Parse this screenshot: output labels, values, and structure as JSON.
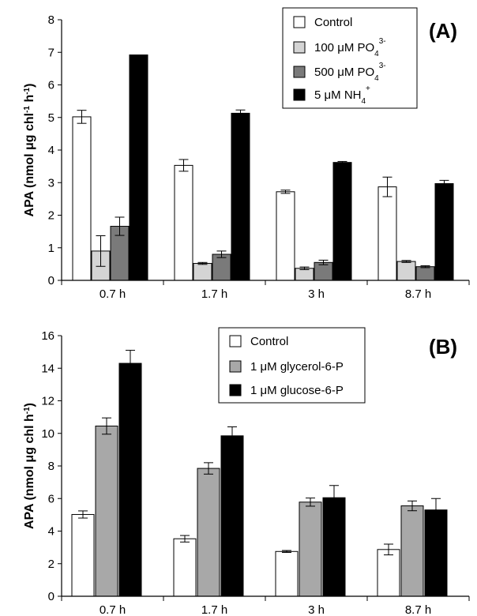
{
  "chart_data": [
    {
      "type": "bar",
      "panel_label": "(A)",
      "ylabel_main": "APA (nmol μg chl",
      "ylabel_sup1": "-1",
      "ylabel_mid": " h",
      "ylabel_sup2": "-1",
      "ylabel_end": ")",
      "ylim": [
        0,
        8
      ],
      "yticks": [
        "0",
        "1",
        "2",
        "3",
        "4",
        "5",
        "6",
        "7",
        "8"
      ],
      "categories": [
        "0.7 h",
        "1.7 h",
        "3 h",
        "8.7 h"
      ],
      "legend_position": "top-right",
      "series": [
        {
          "name": "Control",
          "name_sup": "",
          "color": "#ffffff",
          "values": [
            5.02,
            3.53,
            2.72,
            2.87
          ],
          "errors": [
            0.2,
            0.18,
            0.05,
            0.3
          ]
        },
        {
          "name": "100 μM PO",
          "name_sub": "4",
          "name_sup": "3-",
          "color": "#d4d4d4",
          "values": [
            0.9,
            0.52,
            0.37,
            0.58
          ],
          "errors": [
            0.47,
            0.03,
            0.04,
            0.03
          ]
        },
        {
          "name": "500 μM PO",
          "name_sub": "4",
          "name_sup": "3-",
          "color": "#7a7a7a",
          "values": [
            1.66,
            0.8,
            0.55,
            0.42
          ],
          "errors": [
            0.28,
            0.1,
            0.07,
            0.03
          ]
        },
        {
          "name": "5 μM NH",
          "name_sub": "4",
          "name_sup": "+",
          "color": "#000000",
          "values": [
            6.92,
            5.13,
            3.62,
            2.97
          ],
          "errors": [
            0,
            0.1,
            0.03,
            0.1
          ]
        }
      ]
    },
    {
      "type": "bar",
      "panel_label": "(B)",
      "ylabel_main": "APA (nmol μg chl",
      "ylabel_sup1": "",
      "ylabel_mid": " h",
      "ylabel_sup2": "-1",
      "ylabel_end": ")",
      "ylim": [
        0,
        16
      ],
      "yticks": [
        "0",
        "2",
        "4",
        "6",
        "8",
        "10",
        "12",
        "14",
        "16"
      ],
      "categories": [
        "0.7 h",
        "1.7 h",
        "3 h",
        "8.7 h"
      ],
      "legend_position": "top-right",
      "series": [
        {
          "name": "Control",
          "color": "#ffffff",
          "values": [
            5.02,
            3.53,
            2.75,
            2.87
          ],
          "errors": [
            0.22,
            0.2,
            0.06,
            0.33
          ]
        },
        {
          "name": "1 μM glycerol-6-P",
          "color": "#a8a8a8",
          "values": [
            10.45,
            7.85,
            5.78,
            5.55
          ],
          "errors": [
            0.5,
            0.35,
            0.25,
            0.3
          ]
        },
        {
          "name": "1 μM glucose-6-P",
          "color": "#000000",
          "values": [
            14.3,
            9.85,
            6.05,
            5.3
          ],
          "errors": [
            0.8,
            0.55,
            0.75,
            0.7
          ]
        }
      ]
    }
  ]
}
